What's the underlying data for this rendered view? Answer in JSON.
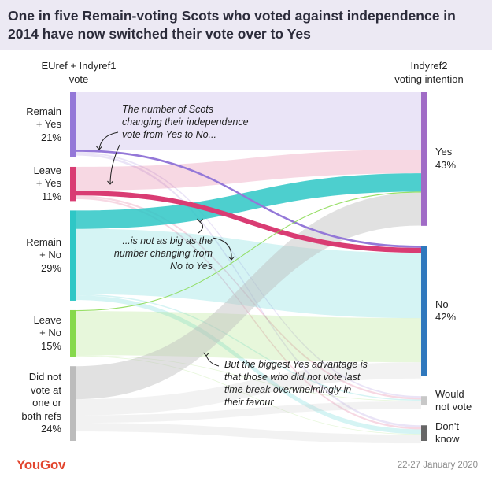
{
  "title": "One in five Remain-voting Scots who voted against independence in 2014 have now switched their vote over to Yes",
  "left_header": [
    "EUref + Indyref1",
    "vote"
  ],
  "right_header": [
    "Indyref2",
    "voting intention"
  ],
  "colors": {
    "remain_yes": "#9478d8",
    "leave_yes": "#d93c73",
    "remain_no": "#2ec7c6",
    "leave_no": "#86d94c",
    "did_not_vote": "#bcbcbc",
    "yes": "#a06bc6",
    "no": "#2f78bd",
    "would_not_vote": "#c8c8c8",
    "dont_know": "#666666",
    "title_bg": "#ece9f3",
    "brand": "#e2462f"
  },
  "annotations": {
    "top": [
      "The number of Scots",
      "changing their independence",
      "vote from Yes to No..."
    ],
    "middle": [
      "...is not as big as the",
      "number changing from",
      "No to Yes"
    ],
    "bottom": [
      "But the biggest Yes advantage is",
      "that those who did not vote last",
      "time break overwhelmingly in",
      "their favour"
    ]
  },
  "chart_data": {
    "type": "sankey",
    "title": "One in five Remain-voting Scots who voted against independence in 2014 have now switched their vote over to Yes",
    "left_axis_label": "EUref + Indyref1 vote",
    "right_axis_label": "Indyref2 voting intention",
    "sources": [
      {
        "key": "remain_yes",
        "label_lines": [
          "Remain",
          "+ Yes",
          "21%"
        ],
        "name": "Remain + Yes",
        "value": 21
      },
      {
        "key": "leave_yes",
        "label_lines": [
          "Leave",
          "+ Yes",
          "11%"
        ],
        "name": "Leave + Yes",
        "value": 11
      },
      {
        "key": "remain_no",
        "label_lines": [
          "Remain",
          "+ No",
          "29%"
        ],
        "name": "Remain + No",
        "value": 29
      },
      {
        "key": "leave_no",
        "label_lines": [
          "Leave",
          "+ No",
          "15%"
        ],
        "name": "Leave + No",
        "value": 15
      },
      {
        "key": "did_not_vote",
        "label_lines": [
          "Did not",
          "vote at",
          "one or",
          "both refs",
          "24%"
        ],
        "name": "Did not vote at one or both refs",
        "value": 24
      }
    ],
    "targets": [
      {
        "key": "yes",
        "label_lines": [
          "Yes",
          "43%"
        ],
        "name": "Yes",
        "value": 43
      },
      {
        "key": "no",
        "label_lines": [
          "No",
          "42%"
        ],
        "name": "No",
        "value": 42
      },
      {
        "key": "would_not_vote",
        "label_lines": [
          "Would",
          "not vote"
        ],
        "name": "Would not vote",
        "value": 3
      },
      {
        "key": "dont_know",
        "label_lines": [
          "Don't",
          "know"
        ],
        "name": "Don't know",
        "value": 5
      }
    ],
    "flows": [
      {
        "from": "remain_yes",
        "to": "yes",
        "value": 18.5
      },
      {
        "from": "remain_yes",
        "to": "no",
        "value": 0.7
      },
      {
        "from": "remain_yes",
        "to": "would_not_vote",
        "value": 0.5
      },
      {
        "from": "remain_yes",
        "to": "dont_know",
        "value": 0.7
      },
      {
        "from": "leave_yes",
        "to": "yes",
        "value": 7.6
      },
      {
        "from": "leave_yes",
        "to": "no",
        "value": 1.6
      },
      {
        "from": "leave_yes",
        "to": "would_not_vote",
        "value": 0.6
      },
      {
        "from": "leave_yes",
        "to": "dont_know",
        "value": 0.6
      },
      {
        "from": "remain_no",
        "to": "yes",
        "value": 5.9
      },
      {
        "from": "remain_no",
        "to": "no",
        "value": 21
      },
      {
        "from": "remain_no",
        "to": "would_not_vote",
        "value": 0.4
      },
      {
        "from": "remain_no",
        "to": "dont_know",
        "value": 1.5
      },
      {
        "from": "leave_no",
        "to": "yes",
        "value": 0.3
      },
      {
        "from": "leave_no",
        "to": "no",
        "value": 14.2
      },
      {
        "from": "leave_no",
        "to": "would_not_vote",
        "value": 0.2
      },
      {
        "from": "leave_no",
        "to": "dont_know",
        "value": 0.2
      },
      {
        "from": "did_not_vote",
        "to": "yes",
        "value": 10.6
      },
      {
        "from": "did_not_vote",
        "to": "no",
        "value": 5.2
      },
      {
        "from": "did_not_vote",
        "to": "would_not_vote",
        "value": 2.4
      },
      {
        "from": "did_not_vote",
        "to": "dont_know",
        "value": 2.8
      }
    ],
    "highlighted_flows": [
      {
        "from": "remain_yes",
        "to": "no"
      },
      {
        "from": "leave_yes",
        "to": "no"
      },
      {
        "from": "leave_no",
        "to": "yes"
      }
    ]
  },
  "footer": {
    "brand": "YouGov",
    "date": "22-27 January 2020"
  }
}
